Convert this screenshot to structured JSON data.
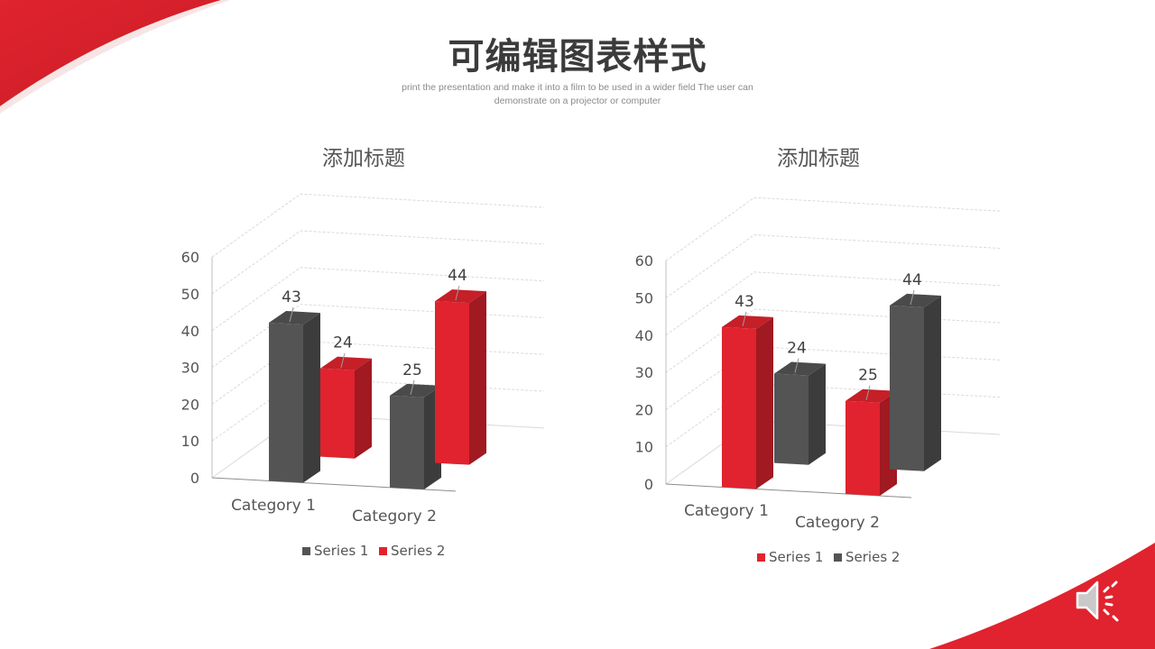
{
  "page": {
    "title": "可编辑图表样式",
    "subtitle": "print the presentation and make it into a film to be used in a wider field The user can demonstrate on a projector or computer"
  },
  "colors": {
    "accent": "#e0232e",
    "accent_dark": "#b51d24",
    "gray": "#545454",
    "gray_dark": "#3a3a3a"
  },
  "icons": {
    "audio": "speaker-icon"
  },
  "chart_data": [
    {
      "type": "bar",
      "title": "添加标题",
      "categories": [
        "Category 1",
        "Category 2"
      ],
      "series": [
        {
          "name": "Series 1",
          "values": [
            43,
            25
          ],
          "color": "#545454"
        },
        {
          "name": "Series 2",
          "values": [
            24,
            44
          ],
          "color": "#e0232e"
        }
      ],
      "ylim": [
        0,
        60
      ],
      "yticks": [
        0,
        10,
        20,
        30,
        40,
        50,
        60
      ],
      "grid": true,
      "legend": "bottom"
    },
    {
      "type": "bar",
      "title": "添加标题",
      "categories": [
        "Category 1",
        "Category 2"
      ],
      "series": [
        {
          "name": "Series 1",
          "values": [
            43,
            25
          ],
          "color": "#e0232e"
        },
        {
          "name": "Series 2",
          "values": [
            24,
            44
          ],
          "color": "#545454"
        }
      ],
      "ylim": [
        0,
        60
      ],
      "yticks": [
        0,
        10,
        20,
        30,
        40,
        50,
        60
      ],
      "grid": true,
      "legend": "bottom"
    }
  ]
}
